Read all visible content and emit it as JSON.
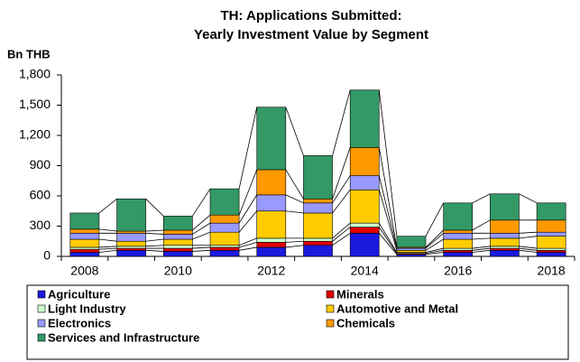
{
  "chart_data": {
    "type": "stacked_bar",
    "title": [
      "TH: Applications Submitted:",
      "Yearly Investment Value by Segment"
    ],
    "y_label": "Bn THB",
    "categories": [
      "2008",
      null,
      "2010",
      null,
      "2012",
      null,
      "2014",
      null,
      "2016",
      null,
      "2018"
    ],
    "series": [
      {
        "name": "Agriculture",
        "color": "#1a1adf",
        "values": [
          40,
          60,
          50,
          60,
          90,
          110,
          230,
          20,
          40,
          60,
          40
        ]
      },
      {
        "name": "Minerals",
        "color": "#e00000",
        "values": [
          30,
          20,
          30,
          30,
          50,
          40,
          60,
          10,
          20,
          20,
          20
        ]
      },
      {
        "name": "Light Industry",
        "color": "#ccffcc",
        "values": [
          20,
          20,
          30,
          20,
          40,
          30,
          40,
          10,
          20,
          20,
          20
        ]
      },
      {
        "name": "Automotive and Metal",
        "color": "#ffcc00",
        "values": [
          80,
          50,
          60,
          130,
          270,
          250,
          330,
          20,
          90,
          80,
          120
        ]
      },
      {
        "name": "Electronics",
        "color": "#9999ff",
        "values": [
          60,
          80,
          50,
          90,
          160,
          100,
          140,
          20,
          60,
          50,
          40
        ]
      },
      {
        "name": "Chemicals",
        "color": "#ff9900",
        "values": [
          40,
          20,
          40,
          80,
          250,
          40,
          280,
          10,
          30,
          130,
          120
        ]
      },
      {
        "name": "Services and Infrastructure",
        "color": "#339966",
        "values": [
          160,
          320,
          140,
          260,
          620,
          430,
          570,
          110,
          270,
          260,
          170
        ]
      }
    ],
    "ylim": [
      0,
      1800
    ],
    "yticks": [
      0,
      300,
      600,
      900,
      {
        "value": 1200,
        "label": "1,200"
      },
      {
        "value": 1500,
        "label": "1,500"
      },
      {
        "value": 1800,
        "label": "1,800"
      }
    ]
  }
}
